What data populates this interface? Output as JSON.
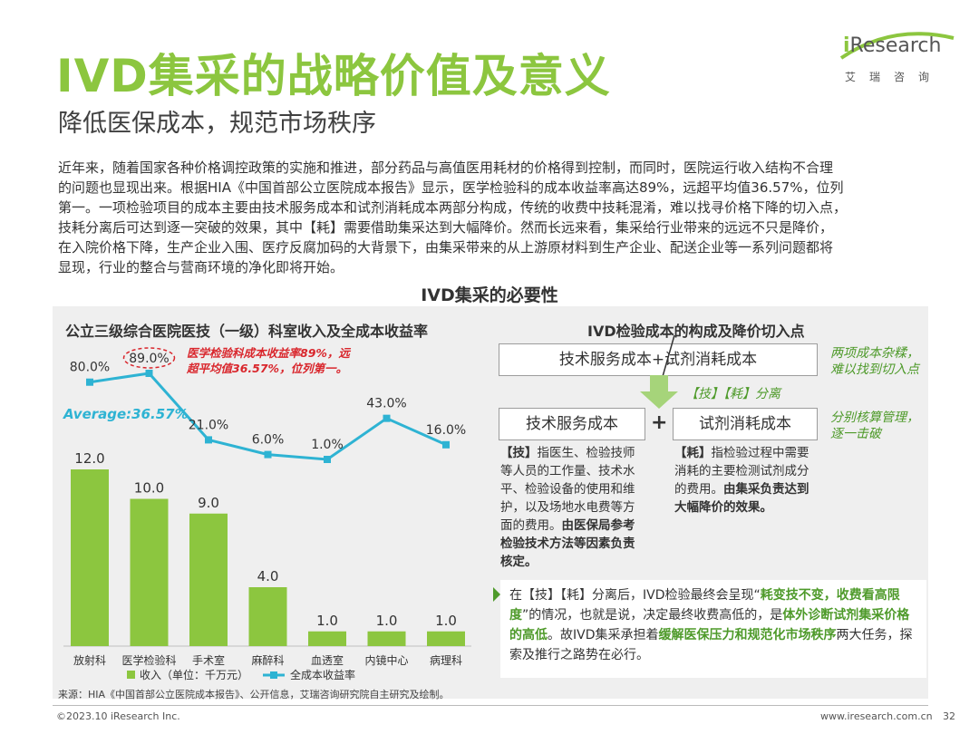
{
  "header": {
    "title": "IVD集采的战略价值及意义",
    "subtitle": "降低医保成本，规范市场秩序",
    "logo_brand": "iResearch",
    "logo_cn": "艾瑞咨询"
  },
  "intro": [
    "近年来，随着国家各种价格调控政策的实施和推进，部分药品与高值医用耗材的价格得到控制，而同时，医院运行收入结构不合理",
    "的问题也显现出来。根据HIA《中国首部公立医院成本报告》显示，医学检验科的成本收益率高达89%，远超平均值36.57%，位列",
    "第一。一项检验项目的成本主要由技术服务成本和试剂消耗成本两部分构成，传统的收费中技耗混淆，难以找寻价格下降的切入点，",
    "技耗分离后可达到逐一突破的效果，其中【耗】需要借助集采达到大幅降价。然而长远来看，集采给行业带来的远远不只是降价，",
    "在入院价格下降，生产企业入围、医疗反腐加码的大背景下，由集采带来的从上游原材料到生产企业、配送企业等一系列问题都将",
    "显现，行业的整合与营商环境的净化即将开始。"
  ],
  "section_title": "IVD集采的必要性",
  "chart_data": {
    "type": "bar",
    "title": "公立三级综合医院医技（一级）科室收入及全成本收益率",
    "categories": [
      "放射科",
      "医学检验科",
      "手术室",
      "麻醉科",
      "血透室",
      "内镜中心",
      "病理科"
    ],
    "series": [
      {
        "name": "收入（单位：千万元）",
        "type": "bar",
        "values": [
          12.0,
          10.0,
          9.0,
          4.0,
          1.0,
          1.0,
          1.0
        ],
        "labels": [
          "12.0",
          "10.0",
          "9.0",
          "4.0",
          "1.0",
          "1.0",
          "1.0"
        ]
      },
      {
        "name": "全成本收益率",
        "type": "line",
        "values": [
          80.0,
          89.0,
          21.0,
          6.0,
          1.0,
          43.0,
          16.0
        ],
        "labels": [
          "80.0%",
          "89.0%",
          "21.0%",
          "6.0%",
          "1.0%",
          "43.0%",
          "16.0%"
        ]
      }
    ],
    "average_label": "Average:36.57%",
    "annotation": [
      "医学检验科成本收益率89%，远",
      "超平均值36.57%，位列第一。"
    ],
    "bar_ylim": [
      0,
      14
    ],
    "line_ylim": [
      0,
      100
    ],
    "colors": {
      "bar": "#8cc63f",
      "line": "#2eb3d3",
      "average": "#2eb3d3",
      "annotation": "#d9262c"
    }
  },
  "right": {
    "title": "IVD检验成本的构成及降价切入点",
    "top_box": "技术服务成本+试剂消耗成本",
    "top_note": [
      "两项成本杂糅，",
      "难以找到切入点"
    ],
    "arrow_label": "【技】【耗】分离",
    "box_left": "技术服务成本",
    "plus": "+",
    "box_right": "试剂消耗成本",
    "right_note": [
      "分别核算管理，",
      "逐一击破"
    ],
    "left_desc": [
      {
        "bold": "【技】",
        "text": "指医生、检验技师"
      },
      {
        "text": "等人员的工作量、技术水"
      },
      {
        "text": "平、检验设备的使用和维"
      },
      {
        "text": "护，以及场地水电费等方"
      },
      {
        "text": "面的费用。",
        "bold_after": "由医保局参考"
      },
      {
        "bold": "检验技术方法等因素负责"
      },
      {
        "bold": "核定。"
      }
    ],
    "right_desc": [
      {
        "bold": "【耗】",
        "text": "指检验过程中需要"
      },
      {
        "text": "消耗的主要检测试剂成分"
      },
      {
        "text": "的费用。",
        "bold_after": "由集采负责达到"
      },
      {
        "bold": "大幅降价的效果。"
      }
    ],
    "summary": {
      "p1": "在【技】【耗】分离后，IVD检验最终会呈现“",
      "b1": "耗变技不变，收费看高限度",
      "p2": "”的情况，也就是说，决定最终收费高低的，是",
      "b2": "体外诊断试剂集采价格的高低",
      "p3": "。故IVD集采承担着",
      "b3": "缓解医保压力和规范化市场秩序",
      "p4": "两大任务，探索及推行之路势在必行。"
    }
  },
  "footer": {
    "source": "来源：HIA《中国首部公立医院成本报告》、公开信息，艾瑞咨询研究院自主研究及绘制。",
    "copyright": "©2023.10 iResearch Inc.",
    "website": "www.iresearch.com.cn",
    "page": "32"
  }
}
